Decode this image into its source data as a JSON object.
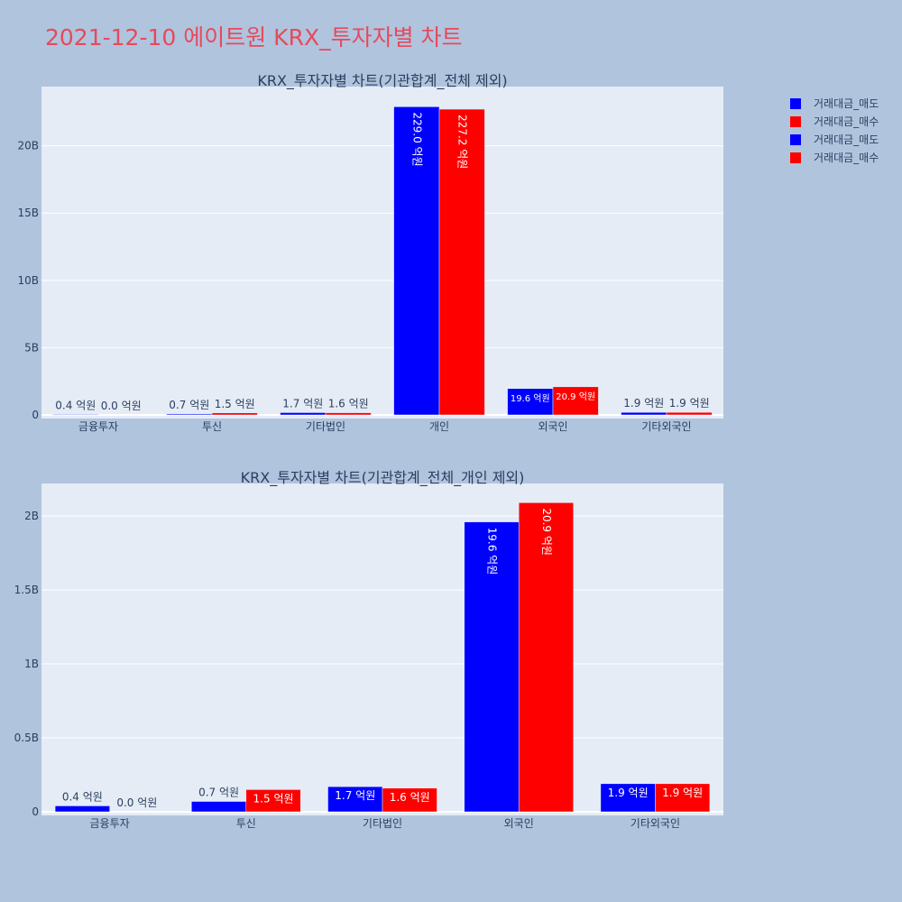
{
  "title": "2021-12-10 에이트원 KRX_투자자별 차트",
  "legend": [
    {
      "label": "거래대금_매도",
      "color": "#0000ff"
    },
    {
      "label": "거래대금_매수",
      "color": "#ff0000"
    },
    {
      "label": "거래대금_매도",
      "color": "#0000ff"
    },
    {
      "label": "거래대금_매수",
      "color": "#ff0000"
    }
  ],
  "chart_data": [
    {
      "type": "bar",
      "title": "KRX_투자자별 차트(기관합계_전체 제외)",
      "categories": [
        "금융투자",
        "투신",
        "기타법인",
        "개인",
        "외국인",
        "기타외국인"
      ],
      "ylim": [
        0,
        24400000000
      ],
      "yticks": [
        0,
        5000000000,
        10000000000,
        15000000000,
        20000000000
      ],
      "ytick_labels": [
        "0",
        "5B",
        "10B",
        "15B",
        "20B"
      ],
      "grid": true,
      "series": [
        {
          "name": "거래대금_매도",
          "color": "#0000ff",
          "values": [
            40000000,
            70000000,
            170000000,
            22900000000,
            1960000000,
            190000000
          ],
          "labels": [
            "0.4 억원",
            "0.7 억원",
            "1.7 억원",
            "229.0 억원",
            "19.6 억원",
            "1.9 억원"
          ]
        },
        {
          "name": "거래대금_매수",
          "color": "#ff0000",
          "values": [
            0,
            150000000,
            160000000,
            22720000000,
            2090000000,
            190000000
          ],
          "labels": [
            "0.0 억원",
            "1.5 억원",
            "1.6 억원",
            "227.2 억원",
            "20.9 억원",
            "1.9 억원"
          ]
        }
      ]
    },
    {
      "type": "bar",
      "title": "KRX_투자자별 차트(기관합계_전체_개인 제외)",
      "categories": [
        "금융투자",
        "투신",
        "기타법인",
        "외국인",
        "기타외국인"
      ],
      "ylim": [
        0,
        2220000000
      ],
      "yticks": [
        0,
        500000000,
        1000000000,
        1500000000,
        2000000000
      ],
      "ytick_labels": [
        "0",
        "0.5B",
        "1B",
        "1.5B",
        "2B"
      ],
      "grid": true,
      "series": [
        {
          "name": "거래대금_매도",
          "color": "#0000ff",
          "values": [
            40000000,
            70000000,
            170000000,
            1960000000,
            190000000
          ],
          "labels": [
            "0.4 억원",
            "0.7 억원",
            "1.7 억원",
            "19.6 억원",
            "1.9 억원"
          ]
        },
        {
          "name": "거래대금_매수",
          "color": "#ff0000",
          "values": [
            0,
            150000000,
            160000000,
            2090000000,
            190000000
          ],
          "labels": [
            "0.0 억원",
            "1.5 억원",
            "1.6 억원",
            "20.9 억원",
            "1.9 억원"
          ]
        }
      ]
    }
  ]
}
